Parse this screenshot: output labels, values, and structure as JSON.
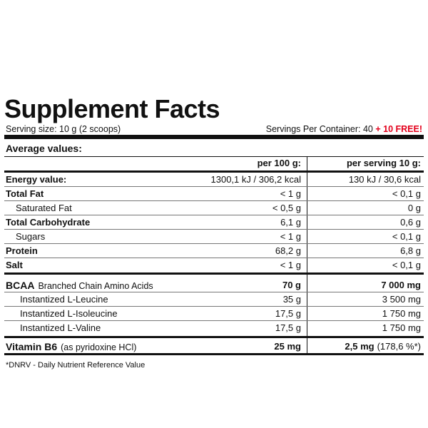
{
  "header": {
    "title": "Supplement Facts",
    "serving_size": "Serving size: 10 g (2 scoops)",
    "servings_per_container": "Servings Per Container: 40",
    "free": "+ 10 FREE!"
  },
  "table": {
    "average_values": "Average values:",
    "columns": [
      "per 100 g:",
      "per serving 10 g:"
    ],
    "rows": [
      {
        "label": "Energy value:",
        "per_100g": "1300,1 kJ / 306,2 kcal",
        "per_serving": "130 kJ / 30,6 kcal"
      },
      {
        "label": "Total Fat",
        "per_100g": "< 1 g",
        "per_serving": "< 0,1 g"
      },
      {
        "label": "Saturated Fat",
        "per_100g": "< 0,5 g",
        "per_serving": "0 g"
      },
      {
        "label": "Total Carbohydrate",
        "per_100g": "6,1 g",
        "per_serving": "0,6 g"
      },
      {
        "label": "Sugars",
        "per_100g": "< 1 g",
        "per_serving": "< 0,1 g"
      },
      {
        "label": "Protein",
        "per_100g": "68,2 g",
        "per_serving": "6,8 g"
      },
      {
        "label": "Salt",
        "per_100g": "< 1 g",
        "per_serving": "< 0,1 g"
      },
      {
        "label": "BCAA",
        "note": "Branched Chain Amino Acids",
        "per_100g": "70 g",
        "per_serving": "7 000 mg"
      },
      {
        "label": "Instantized L-Leucine",
        "per_100g": "35 g",
        "per_serving": "3 500 mg"
      },
      {
        "label": "Instantized L-Isoleucine",
        "per_100g": "17,5 g",
        "per_serving": "1 750 mg"
      },
      {
        "label": "Instantized L-Valine",
        "per_100g": "17,5 g",
        "per_serving": "1 750 mg"
      },
      {
        "label": "Vitamin B6",
        "note": "(as pyridoxine HCl)",
        "per_100g": "25 mg",
        "per_serving": "2,5 mg",
        "per_serving_note": "(178,6 %*)"
      }
    ]
  },
  "footnote": "*DNRV - Daily Nutrient Reference Value"
}
